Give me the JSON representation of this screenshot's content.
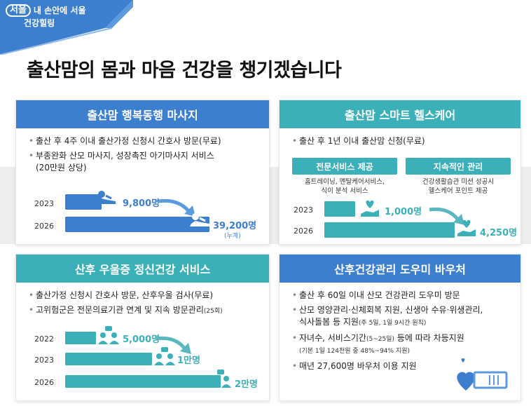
{
  "brand": {
    "logo": "서울",
    "line1": "내 손안에 서울",
    "line2": "건강힐링"
  },
  "title": "출산맘의 몸과 마음 건강을 챙기겠습니다",
  "colors": {
    "blue": "#3d7fcf",
    "teal": "#3bb0b8",
    "light_blue": "#5b9bdd"
  },
  "card1": {
    "header": "출산맘 행복동행 마사지",
    "bullets": [
      "출산 후 4주 이내 출산가정 신청시 간호사 방문(무료)",
      "부종완화 산모 마사지, 성장촉진 아기마사지 서비스",
      "(20만원 상당)"
    ],
    "rows": [
      {
        "year": "2023",
        "value": "9,800명"
      },
      {
        "year": "2026",
        "value": "39,200명",
        "note": "(누계)"
      }
    ]
  },
  "card2": {
    "header": "출산맘 스마트 헬스케어",
    "bullet": "출산 후 1년 이내 출산맘 신청(무료)",
    "pills": [
      {
        "label": "전문서비스 제공",
        "desc1": "홈트레이닝, 멘탈케어서비스,",
        "desc2": "식이 분석 서비스"
      },
      {
        "label": "지속적인 관리",
        "desc1": "건강생활습관 미션 성공시",
        "desc2": "헬스케어 포인트 제공"
      }
    ],
    "rows": [
      {
        "year": "2023",
        "value": "1,000명"
      },
      {
        "year": "2026",
        "value": "4,250명"
      }
    ]
  },
  "card3": {
    "header": "산후 우울증 정신건강 서비스",
    "bullet1": "출산가정 신청시 간호사 방문, 산후우울 검사(무료)",
    "bullet2_main": "고위험군은 전문의료기관 연계  및 지속 방문관리",
    "bullet2_small": "(25회)",
    "rows": [
      {
        "year": "2022",
        "value": "5,000명"
      },
      {
        "year": "2023",
        "value": "1만명"
      },
      {
        "year": "2026",
        "value": "2만명"
      }
    ]
  },
  "card4": {
    "header": "산후건강관리 도우미 바우처",
    "bullet1": "출산 후 60일 이내 산모 건강관리 도우미 방문",
    "bullet2_line1": "산모 영양관리·신체회복 지원, 신생아 수유·위생관리,",
    "bullet2_line2": "식사돌봄 등 지원",
    "bullet2_small": "(주 5일, 1일 9시간 원칙)",
    "bullet3_main": "자녀수, 서비스기간",
    "bullet3_small": "(5~25일)",
    "bullet3_rest": " 등에 따라 차등지원",
    "bullet3_sub": "(기본 1일 124천원 중 48%~94% 지원)",
    "bullet4": "매년 27,600명 바우처 이용 지원"
  }
}
